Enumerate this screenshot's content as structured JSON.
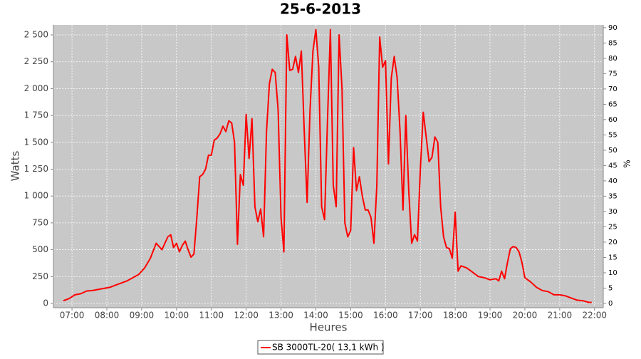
{
  "chart_data": {
    "type": "line",
    "title": "25-6-2013",
    "x_label": "Heures",
    "y_label": "Watts",
    "y2_label": "%",
    "x": [
      "06:45",
      "06:55",
      "07:05",
      "07:15",
      "07:25",
      "07:35",
      "07:45",
      "07:55",
      "08:05",
      "08:15",
      "08:25",
      "08:35",
      "08:45",
      "08:55",
      "09:05",
      "09:15",
      "09:25",
      "09:35",
      "09:45",
      "09:50",
      "09:55",
      "10:00",
      "10:05",
      "10:10",
      "10:15",
      "10:20",
      "10:25",
      "10:30",
      "10:35",
      "10:40",
      "10:45",
      "10:50",
      "10:55",
      "11:00",
      "11:05",
      "11:10",
      "11:15",
      "11:20",
      "11:25",
      "11:30",
      "11:35",
      "11:40",
      "11:45",
      "11:50",
      "11:55",
      "12:00",
      "12:05",
      "12:10",
      "12:15",
      "12:20",
      "12:25",
      "12:30",
      "12:35",
      "12:40",
      "12:45",
      "12:50",
      "12:55",
      "13:00",
      "13:05",
      "13:10",
      "13:15",
      "13:20",
      "13:25",
      "13:30",
      "13:35",
      "13:40",
      "13:45",
      "13:50",
      "13:55",
      "14:00",
      "14:05",
      "14:10",
      "14:15",
      "14:20",
      "14:25",
      "14:30",
      "14:35",
      "14:40",
      "14:45",
      "14:50",
      "14:55",
      "15:00",
      "15:05",
      "15:10",
      "15:15",
      "15:20",
      "15:25",
      "15:30",
      "15:35",
      "15:40",
      "15:45",
      "15:50",
      "15:55",
      "16:00",
      "16:05",
      "16:10",
      "16:15",
      "16:20",
      "16:25",
      "16:30",
      "16:35",
      "16:40",
      "16:45",
      "16:50",
      "16:55",
      "17:00",
      "17:05",
      "17:10",
      "17:15",
      "17:20",
      "17:25",
      "17:30",
      "17:35",
      "17:40",
      "17:45",
      "17:50",
      "17:55",
      "18:00",
      "18:05",
      "18:10",
      "18:20",
      "18:30",
      "18:40",
      "18:50",
      "19:00",
      "19:10",
      "19:15",
      "19:20",
      "19:25",
      "19:30",
      "19:35",
      "19:40",
      "19:45",
      "19:50",
      "19:55",
      "20:00",
      "20:10",
      "20:20",
      "20:30",
      "20:40",
      "20:50",
      "21:00",
      "21:10",
      "21:20",
      "21:30",
      "21:40",
      "21:50",
      "21:55"
    ],
    "series": [
      {
        "name": "SB 3000TL-20( 13,1 kWh )",
        "color": "#ff0000",
        "values": [
          25,
          45,
          80,
          90,
          115,
          120,
          130,
          140,
          150,
          170,
          190,
          210,
          240,
          270,
          330,
          420,
          560,
          500,
          620,
          640,
          520,
          560,
          480,
          540,
          580,
          500,
          430,
          460,
          800,
          1180,
          1200,
          1250,
          1380,
          1380,
          1520,
          1540,
          1580,
          1650,
          1600,
          1700,
          1680,
          1500,
          550,
          1200,
          1100,
          1760,
          1350,
          1720,
          900,
          760,
          880,
          620,
          1600,
          2050,
          2180,
          2150,
          1800,
          800,
          480,
          2500,
          2170,
          2180,
          2300,
          2150,
          2350,
          1600,
          940,
          1800,
          2350,
          2550,
          2200,
          900,
          780,
          1700,
          2550,
          1100,
          900,
          2500,
          2000,
          750,
          620,
          680,
          1450,
          1050,
          1180,
          1000,
          870,
          870,
          800,
          560,
          1100,
          2480,
          2200,
          2260,
          1300,
          2100,
          2300,
          2100,
          1600,
          870,
          1750,
          1050,
          560,
          640,
          580,
          1250,
          1780,
          1550,
          1320,
          1360,
          1550,
          1500,
          900,
          620,
          520,
          510,
          420,
          850,
          300,
          350,
          330,
          290,
          250,
          240,
          220,
          230,
          210,
          300,
          230,
          380,
          510,
          530,
          520,
          480,
          380,
          240,
          200,
          150,
          120,
          110,
          80,
          80,
          70,
          50,
          30,
          25,
          10,
          10
        ]
      }
    ],
    "xlim": [
      "06:28",
      "22:15"
    ],
    "xticks": [
      "07:00",
      "08:00",
      "09:00",
      "10:00",
      "11:00",
      "12:00",
      "13:00",
      "14:00",
      "15:00",
      "16:00",
      "17:00",
      "18:00",
      "19:00",
      "20:00",
      "21:00",
      "22:00"
    ],
    "ylim": [
      -40,
      2593
    ],
    "yticks": [
      0,
      250,
      500,
      750,
      {
        "value": 1000,
        "label": "1 000"
      },
      {
        "value": 1250,
        "label": "1 250"
      },
      {
        "value": 1500,
        "label": "1 500"
      },
      {
        "value": 1750,
        "label": "1 750"
      },
      {
        "value": 2000,
        "label": "2 000"
      },
      {
        "value": 2250,
        "label": "2 250"
      },
      {
        "value": 2500,
        "label": "2 500"
      }
    ],
    "y2lim": [
      -1.4,
      90.9
    ],
    "y2ticks": [
      0,
      5,
      10,
      15,
      20,
      25,
      30,
      35,
      40,
      45,
      50,
      55,
      60,
      65,
      70,
      75,
      80,
      85,
      90
    ],
    "grid": true
  }
}
